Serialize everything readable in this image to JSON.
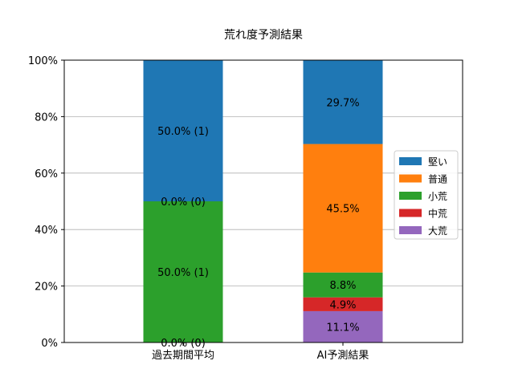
{
  "chart_data": {
    "type": "bar",
    "stacked": true,
    "title": "荒れ度予測結果",
    "xlabel": "",
    "ylabel": "",
    "categories": [
      "過去期間平均",
      "AI予測結果"
    ],
    "ylim": [
      0,
      100
    ],
    "yticks": [
      0,
      20,
      40,
      60,
      80,
      100
    ],
    "ytick_labels": [
      "0%",
      "20%",
      "40%",
      "60%",
      "80%",
      "100%"
    ],
    "grid": "horizontal",
    "legend_position": "center-right",
    "series": [
      {
        "name": "大荒",
        "color": "#9467bd",
        "values": [
          0.0,
          11.1
        ],
        "labels": [
          "0.0% (0)",
          "11.1%"
        ]
      },
      {
        "name": "中荒",
        "color": "#d62728",
        "values": [
          0.0,
          4.9
        ],
        "labels": [
          "",
          "4.9%"
        ]
      },
      {
        "name": "小荒",
        "color": "#2ca02c",
        "values": [
          50.0,
          8.8
        ],
        "labels": [
          "50.0% (1)",
          "8.8%"
        ]
      },
      {
        "name": "普通",
        "color": "#ff7f0e",
        "values": [
          0.0,
          45.5
        ],
        "labels": [
          "0.0% (0)",
          "45.5%"
        ]
      },
      {
        "name": "堅い",
        "color": "#1f77b4",
        "values": [
          50.0,
          29.7
        ],
        "labels": [
          "50.0% (1)",
          "29.7%"
        ]
      }
    ],
    "legend_order": [
      "堅い",
      "普通",
      "小荒",
      "中荒",
      "大荒"
    ]
  }
}
